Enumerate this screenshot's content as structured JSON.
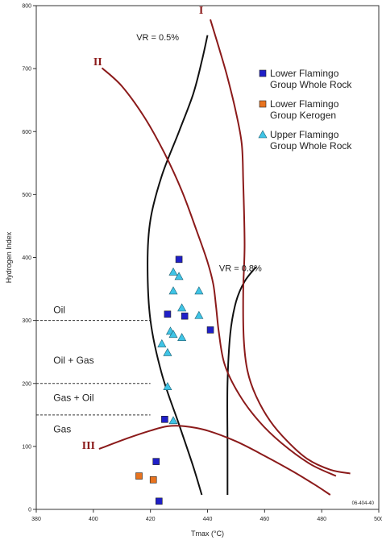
{
  "chart_data": {
    "type": "scatter",
    "xlabel": "Tmax (°C)",
    "ylabel": "Hydrogen Index",
    "xlim": [
      380,
      500
    ],
    "ylim": [
      0,
      800
    ],
    "x_ticks": [
      "380",
      "400",
      "420",
      "440",
      "460",
      "480",
      "500"
    ],
    "y_ticks": [
      "0",
      "100",
      "200",
      "300",
      "400",
      "500",
      "600",
      "700",
      "800"
    ],
    "figure_id": "06-404-40",
    "grid": false,
    "legend_position": "top-right",
    "series": [
      {
        "name": "Lower Flamingo Group Whole Rock",
        "legend_lines": [
          "Lower Flamingo",
          "Group Whole Rock"
        ],
        "marker": "square",
        "color": "#1f1fc8",
        "points": [
          [
            430,
            397
          ],
          [
            426,
            310
          ],
          [
            432,
            307
          ],
          [
            441,
            285
          ],
          [
            425,
            143
          ],
          [
            422,
            76
          ],
          [
            423,
            13
          ]
        ]
      },
      {
        "name": "Lower Flamingo Group Kerogen",
        "legend_lines": [
          "Lower Flamingo",
          "Group Kerogen"
        ],
        "marker": "square",
        "color": "#e8731f",
        "points": [
          [
            416,
            53
          ],
          [
            421,
            47
          ]
        ]
      },
      {
        "name": "Upper Flamingo Group Whole Rock",
        "legend_lines": [
          "Upper Flamingo",
          "Group Whole Rock"
        ],
        "marker": "triangle",
        "color": "#3fc4e6",
        "points": [
          [
            428,
            377
          ],
          [
            430,
            370
          ],
          [
            428,
            347
          ],
          [
            437,
            347
          ],
          [
            431,
            320
          ],
          [
            437,
            308
          ],
          [
            427,
            283
          ],
          [
            428,
            278
          ],
          [
            431,
            273
          ],
          [
            424,
            263
          ],
          [
            426,
            249
          ],
          [
            426,
            195
          ],
          [
            428,
            141
          ]
        ]
      }
    ],
    "kerogen_curves": [
      {
        "label": "I",
        "label_at": [
          437,
          787
        ],
        "color": "#8B1A1A",
        "points": [
          [
            441,
            778
          ],
          [
            444,
            733
          ],
          [
            447,
            686
          ],
          [
            450,
            630
          ],
          [
            452,
            580
          ],
          [
            452.5,
            520
          ],
          [
            453,
            420
          ],
          [
            452.5,
            345
          ],
          [
            452.7,
            270
          ],
          [
            454,
            220
          ],
          [
            457,
            180
          ],
          [
            462,
            140
          ],
          [
            468,
            108
          ],
          [
            475,
            80
          ],
          [
            483,
            63
          ],
          [
            490,
            57
          ]
        ]
      },
      {
        "label": "II",
        "label_at": [
          400,
          705
        ],
        "color": "#8B1A1A",
        "points": [
          [
            403,
            701
          ],
          [
            410,
            672
          ],
          [
            418,
            622
          ],
          [
            425,
            565
          ],
          [
            431,
            506
          ],
          [
            436,
            445
          ],
          [
            440,
            393
          ],
          [
            442,
            358
          ],
          [
            443,
            322
          ],
          [
            444,
            280
          ],
          [
            446,
            230
          ],
          [
            451,
            183
          ],
          [
            458,
            140
          ],
          [
            466,
            105
          ],
          [
            476,
            72
          ],
          [
            485,
            53
          ]
        ]
      },
      {
        "label": "III",
        "label_at": [
          396,
          96
        ],
        "color": "#8B1A1A",
        "points": [
          [
            402,
            96
          ],
          [
            412,
            113
          ],
          [
            420,
            125
          ],
          [
            426,
            132
          ],
          [
            432,
            132
          ],
          [
            440,
            125
          ],
          [
            450,
            108
          ],
          [
            460,
            85
          ],
          [
            470,
            60
          ],
          [
            478,
            38
          ],
          [
            483,
            23
          ]
        ]
      }
    ],
    "vitrinite_lines": [
      {
        "label": "VR = 0.5%",
        "label_at": [
          430,
          745
        ],
        "points": [
          [
            440,
            753
          ],
          [
            438,
            712
          ],
          [
            435,
            660
          ],
          [
            430,
            600
          ],
          [
            424,
            530
          ],
          [
            420,
            460
          ],
          [
            419,
            390
          ],
          [
            420,
            300
          ],
          [
            424,
            215
          ],
          [
            430,
            135
          ],
          [
            435,
            68
          ],
          [
            438,
            23
          ]
        ]
      },
      {
        "label": "VR = 0.8%",
        "label_at": [
          459,
          378
        ],
        "points": [
          [
            457,
            385
          ],
          [
            453,
            362
          ],
          [
            450,
            330
          ],
          [
            448,
            280
          ],
          [
            447,
            200
          ],
          [
            447,
            100
          ],
          [
            447,
            23
          ]
        ]
      }
    ],
    "zones": [
      {
        "label": "Oil",
        "label_at": [
          386,
          312
        ],
        "boundary_hi": 300
      },
      {
        "label": "Oil + Gas",
        "label_at": [
          386,
          232
        ],
        "boundary_hi": 200
      },
      {
        "label": "Gas + Oil",
        "label_at": [
          386,
          172
        ],
        "boundary_hi": 150
      },
      {
        "label": "Gas",
        "label_at": [
          386,
          122
        ],
        "boundary_hi": null
      }
    ],
    "zone_line_xmax": 420
  }
}
